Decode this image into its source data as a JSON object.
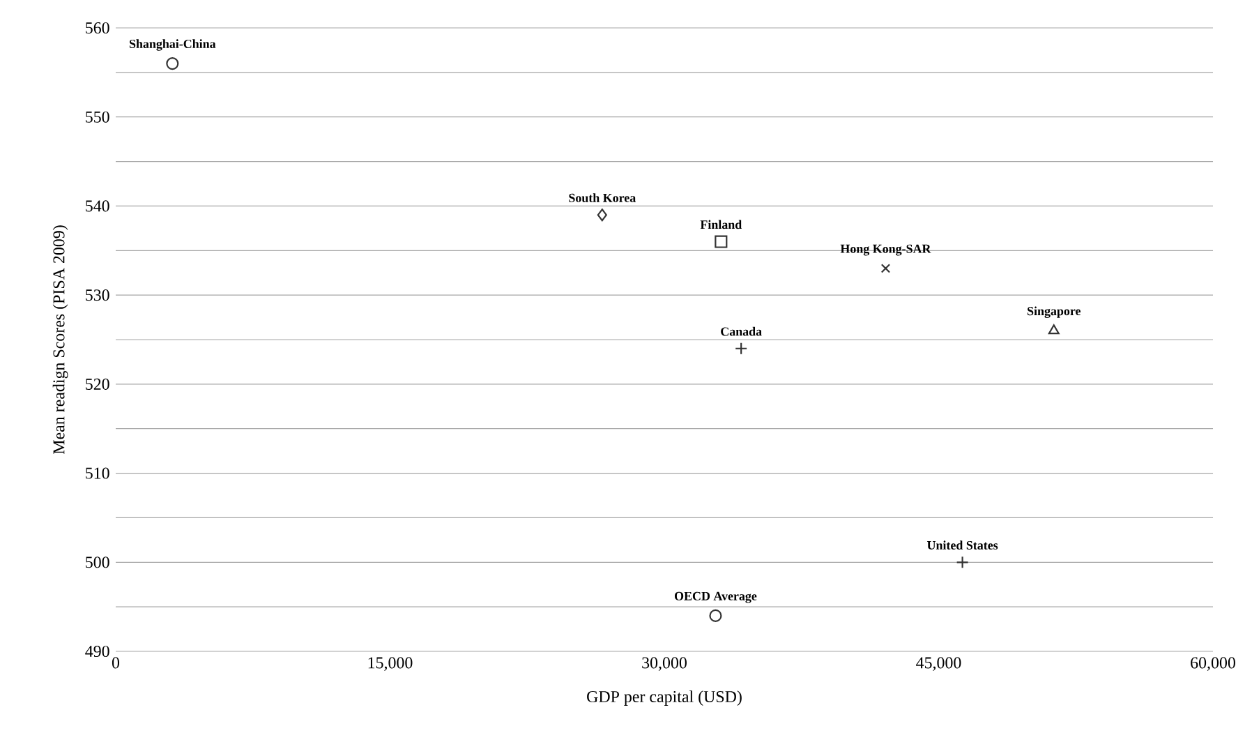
{
  "chart_data": {
    "type": "scatter",
    "xlabel": "GDP per capital (USD)",
    "ylabel": "Mean readign Scores (PISA 2009)",
    "xlim": [
      0,
      60000
    ],
    "ylim": [
      490,
      560
    ],
    "xticks": [
      0,
      {
        "value": 15000,
        "label": "15,000"
      },
      {
        "value": 30000,
        "label": "30,000"
      },
      {
        "value": 45000,
        "label": "45,000"
      },
      {
        "value": 60000,
        "label": "60,000"
      }
    ],
    "yticks": [
      490,
      {
        "value": 495,
        "label": null
      },
      500,
      {
        "value": 505,
        "label": null
      },
      510,
      {
        "value": 515,
        "label": null
      },
      520,
      {
        "value": 525,
        "label": null
      },
      530,
      {
        "value": 535,
        "label": null
      },
      540,
      {
        "value": 545,
        "label": null
      },
      550,
      {
        "value": 555,
        "label": null
      },
      560
    ],
    "grid": "y",
    "series": [
      {
        "name": "Shanghai-China",
        "color": "#333333",
        "marker": "circle",
        "x": [
          3100
        ],
        "values": [
          556
        ]
      },
      {
        "name": "South Korea",
        "color": "#333333",
        "marker": "diamond",
        "x": [
          26600
        ],
        "values": [
          539
        ]
      },
      {
        "name": "Finland",
        "color": "#333333",
        "marker": "square",
        "x": [
          33100
        ],
        "values": [
          536
        ]
      },
      {
        "name": "Hong Kong-SAR",
        "color": "#333333",
        "marker": "cross",
        "x": [
          42100
        ],
        "values": [
          533
        ]
      },
      {
        "name": "Canada",
        "color": "#333333",
        "marker": "plus",
        "x": [
          34200
        ],
        "values": [
          524
        ]
      },
      {
        "name": "Singapore",
        "color": "#333333",
        "marker": "triangle",
        "x": [
          51300
        ],
        "values": [
          526
        ]
      },
      {
        "name": "United States",
        "color": "#333333",
        "marker": "plus",
        "x": [
          46300
        ],
        "values": [
          500
        ]
      },
      {
        "name": "OECD Average",
        "color": "#333333",
        "marker": "circle",
        "x": [
          32800
        ],
        "values": [
          494
        ]
      }
    ]
  }
}
